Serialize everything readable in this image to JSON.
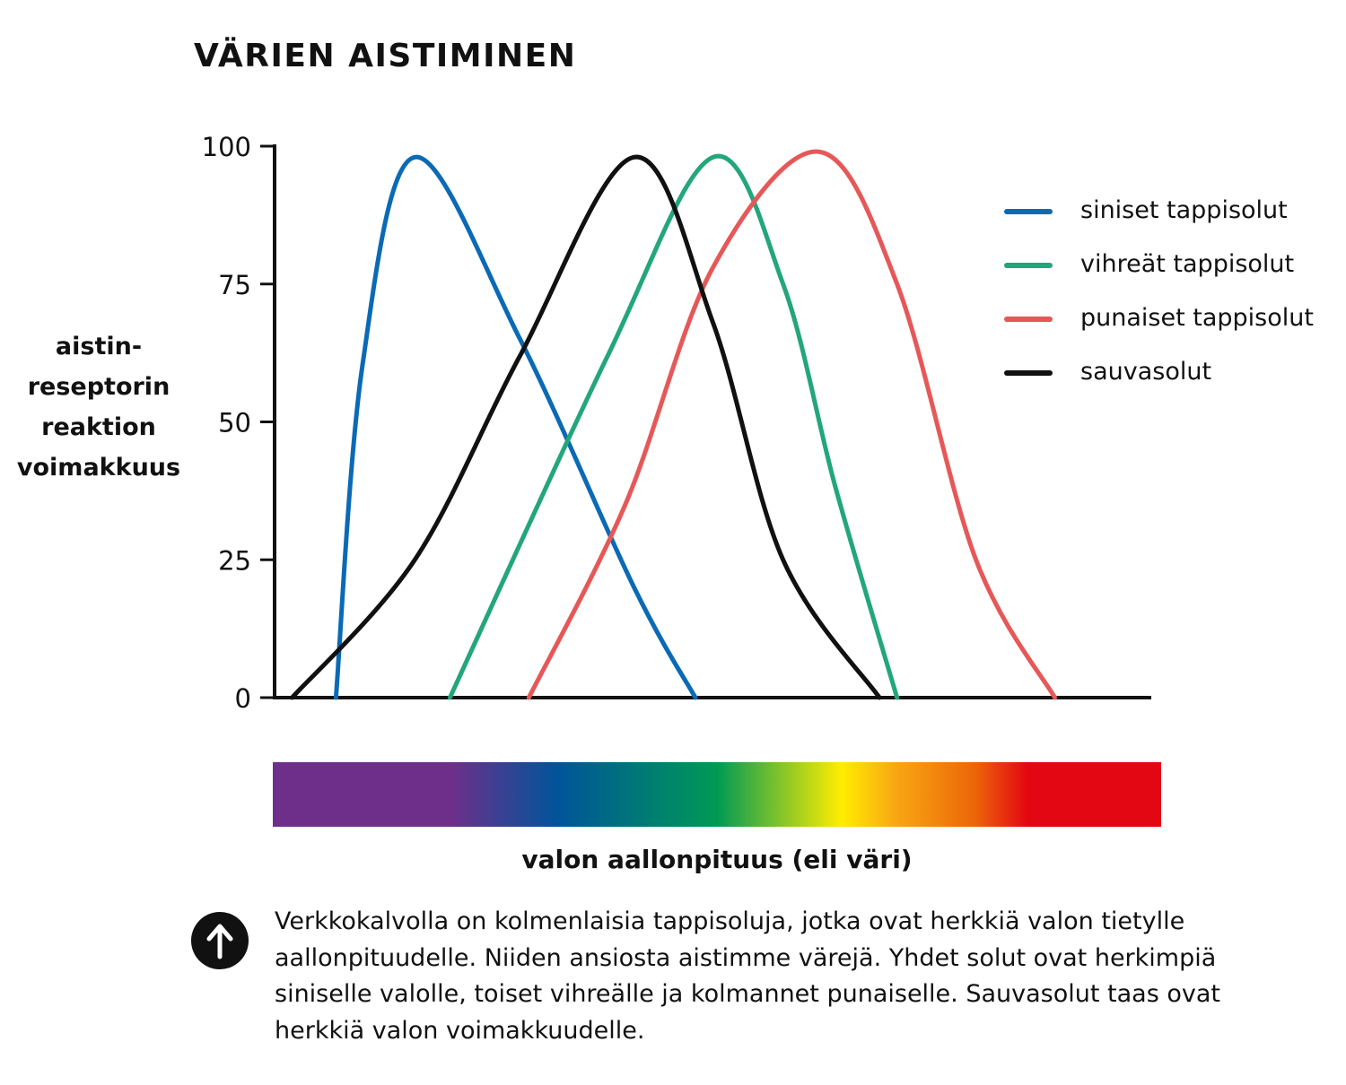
{
  "title": "VÄRIEN AISTIMINEN",
  "chart_data": {
    "type": "line",
    "title": "VÄRIEN AISTIMINEN",
    "ylabel_lines": [
      "aistin-",
      "reseptorin",
      "reaktion",
      "voimakkuus"
    ],
    "xlabel": "valon aallonpituus (eli väri)",
    "ylim": [
      0,
      100
    ],
    "yticks": [
      0,
      25,
      50,
      75,
      100
    ],
    "x_scale_note": "",
    "legend_position": "top-right",
    "series": [
      {
        "name": "siniset tappisolut",
        "color": "#0a6ab5",
        "points": [
          [
            0.07,
            0
          ],
          [
            0.1,
            60
          ],
          [
            0.16,
            98
          ],
          [
            0.28,
            65
          ],
          [
            0.41,
            20
          ],
          [
            0.48,
            0
          ]
        ]
      },
      {
        "name": "vihreät tappisolut",
        "color": "#23a67a",
        "points": [
          [
            0.2,
            0
          ],
          [
            0.38,
            62
          ],
          [
            0.5,
            98
          ],
          [
            0.58,
            75
          ],
          [
            0.64,
            38
          ],
          [
            0.71,
            0
          ]
        ]
      },
      {
        "name": "punaiset tappisolut",
        "color": "#e65858",
        "points": [
          [
            0.29,
            0
          ],
          [
            0.4,
            35
          ],
          [
            0.5,
            78
          ],
          [
            0.62,
            99
          ],
          [
            0.71,
            75
          ],
          [
            0.8,
            25
          ],
          [
            0.89,
            0
          ]
        ]
      },
      {
        "name": "sauvasolut",
        "color": "#111111",
        "points": [
          [
            0.02,
            0
          ],
          [
            0.16,
            25
          ],
          [
            0.28,
            62
          ],
          [
            0.41,
            98
          ],
          [
            0.5,
            68
          ],
          [
            0.58,
            25
          ],
          [
            0.69,
            0
          ]
        ]
      }
    ]
  },
  "spectrum": {
    "label": "valon aallonpituus (eli väri)",
    "stops": [
      {
        "color": "#6e2f8b",
        "offset": 0.0
      },
      {
        "color": "#6e2f8b",
        "offset": 0.2
      },
      {
        "color": "#00549a",
        "offset": 0.32
      },
      {
        "color": "#009a55",
        "offset": 0.5
      },
      {
        "color": "#ffed00",
        "offset": 0.64
      },
      {
        "color": "#f9a813",
        "offset": 0.7
      },
      {
        "color": "#ec6608",
        "offset": 0.79
      },
      {
        "color": "#e30613",
        "offset": 0.85
      },
      {
        "color": "#e30613",
        "offset": 1.0
      }
    ]
  },
  "info_icon": "up-arrow-icon",
  "caption": "Verkkokalvolla on kolmenlaisia tappisoluja, jotka ovat herkkiä valon tietylle aallonpituudelle. Niiden ansiosta aistimme värejä. Yhdet solut ovat herkimpiä siniselle valolle, toiset vihreälle ja kolmannet punaiselle. Sauvasolut taas ovat herkkiä valon voimakkuudelle."
}
